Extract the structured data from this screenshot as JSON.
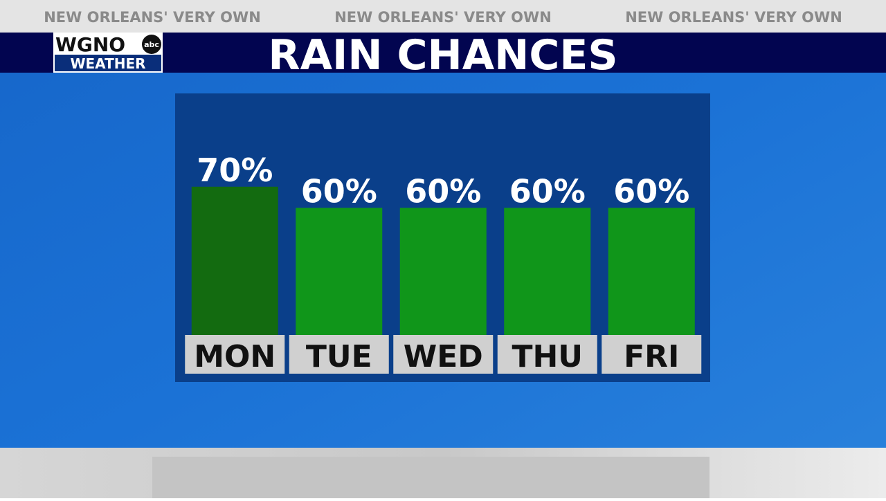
{
  "banner": [
    "NEW ORLEANS' VERY OWN",
    "NEW ORLEANS' VERY OWN",
    "NEW ORLEANS' VERY OWN"
  ],
  "logo": {
    "name": "WGNO",
    "network": "abc",
    "label": "WEATHER"
  },
  "chart_data": {
    "type": "bar",
    "title": "RAIN CHANCES",
    "categories": [
      "MON",
      "TUE",
      "WED",
      "THU",
      "FRI"
    ],
    "values": [
      70,
      60,
      60,
      60,
      60
    ],
    "value_labels": [
      "70%",
      "60%",
      "60%",
      "60%",
      "60%"
    ],
    "colors": [
      "#136b10",
      "#10961a",
      "#10961a",
      "#10961a",
      "#10961a"
    ]
  }
}
